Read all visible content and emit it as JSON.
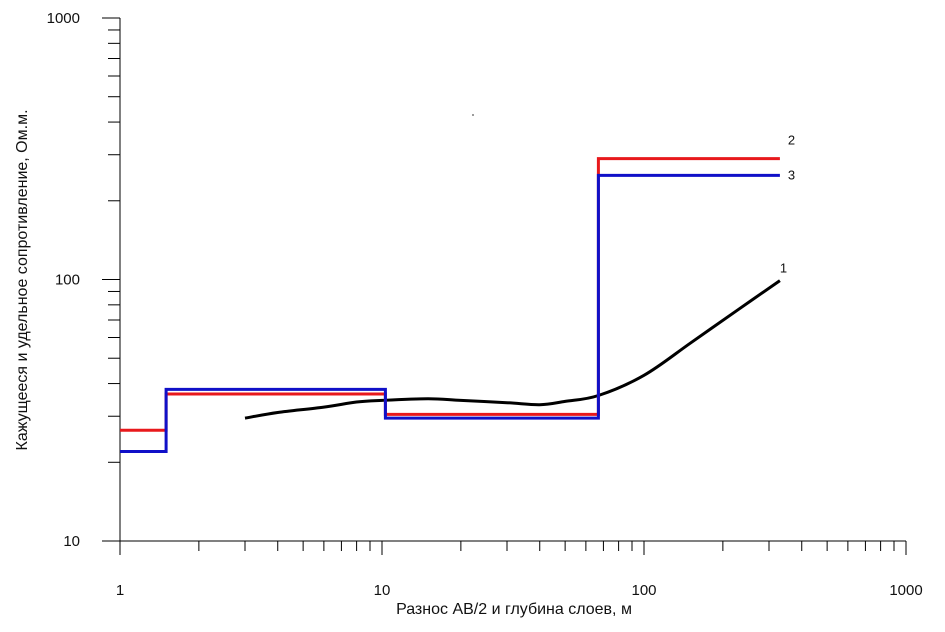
{
  "chart_data": {
    "type": "line",
    "title": "",
    "xlabel": "Разнос АВ/2 и глубина слоев, м",
    "ylabel": "Кажущееся и удельное сопротивление, Ом.м.",
    "x_scale": "log",
    "y_scale": "log",
    "xlim": [
      1,
      1000
    ],
    "ylim": [
      10,
      1000
    ],
    "x_ticks": [
      1,
      10,
      100,
      1000
    ],
    "x_tick_labels": [
      "1",
      "10",
      "100",
      "1000"
    ],
    "y_ticks": [
      10,
      100,
      1000
    ],
    "y_tick_labels": [
      "10",
      "100",
      "1000"
    ],
    "grid": false,
    "legend": "none",
    "series": [
      {
        "name": "1",
        "color": "#000000",
        "style": "curve",
        "x": [
          3,
          4,
          6,
          8,
          10,
          15,
          20,
          30,
          40,
          50,
          67,
          100,
          150,
          230,
          330
        ],
        "y": [
          29.5,
          31,
          32.5,
          34,
          34.5,
          35,
          34.5,
          33.8,
          33.2,
          34.2,
          36,
          43,
          57,
          77,
          99
        ]
      },
      {
        "name": "2",
        "color": "#e8191c",
        "style": "step",
        "x": [
          1,
          1.5,
          1.5,
          10.3,
          10.3,
          67,
          67,
          330
        ],
        "y": [
          26.5,
          26.5,
          36.5,
          36.5,
          30.5,
          30.5,
          290,
          290
        ]
      },
      {
        "name": "3",
        "color": "#1010c8",
        "style": "step",
        "x": [
          1,
          1.5,
          1.5,
          10.3,
          10.3,
          67,
          67,
          330
        ],
        "y": [
          22,
          22,
          38,
          38,
          29.5,
          29.5,
          250,
          250
        ]
      }
    ]
  }
}
